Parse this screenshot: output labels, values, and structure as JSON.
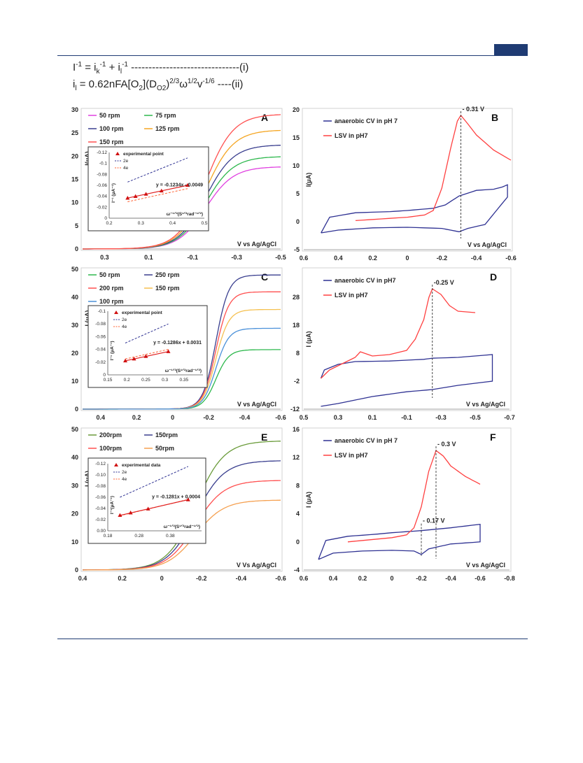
{
  "equations": {
    "eq1": {
      "t1": "I",
      "s1": "-1",
      "t2": " = i",
      "b1": "k",
      "s2": "-1",
      "t3": " + i",
      "b2": "l",
      "s3": "-1",
      "t4": " -------------------------------(i)"
    },
    "eq2": {
      "t1": "i",
      "b1": "l",
      "t2": " = 0.62nFA[O",
      "b2": "2",
      "t3": "](D",
      "b3": "O",
      "b4": "2",
      "t4": ")",
      "s1": "2/3",
      "t5": "ω",
      "s2": "1/2",
      "t6": "v",
      "s3": "-1/6",
      "t7": " ----(ii)"
    }
  },
  "colors": {
    "frame": "#1f3b73",
    "blue": "#2e3192",
    "red": "#ff4040"
  },
  "chart_data": [
    {
      "id": "A",
      "type": "line",
      "panel_letter": "A",
      "xlabel": "V vs Ag/AgCl",
      "ylabel": "I(μA)",
      "xlim": [
        0.4,
        -0.5
      ],
      "ylim": [
        0,
        30
      ],
      "xticks": [
        "0.3",
        "0.1",
        "-0.1",
        "-0.3",
        "-0.5"
      ],
      "xtick_values": [
        0.3,
        0.1,
        -0.1,
        -0.3,
        -0.5
      ],
      "yticks": [
        "0",
        "5",
        "10",
        "15",
        "20",
        "25",
        "30"
      ],
      "ytick_values": [
        0,
        5,
        10,
        15,
        20,
        25,
        30
      ],
      "legend_cols": 2,
      "series": [
        {
          "name": "50 rpm",
          "color": "#e040e0",
          "plateau": 17.7,
          "legend": true
        },
        {
          "name": "75 rpm",
          "color": "#2db84d",
          "plateau": 19.9,
          "legend": true
        },
        {
          "name": "100 rpm",
          "color": "#3a3f8f",
          "plateau": 22.4,
          "legend": true
        },
        {
          "name": "125 rpm",
          "color": "#f5a623",
          "plateau": 25.6,
          "legend": true
        },
        {
          "name": "150 rpm",
          "color": "#ff5050",
          "plateau": 29.0,
          "legend": true
        }
      ],
      "onset": -0.16,
      "k": 16,
      "inset": {
        "xlim": [
          0.2,
          0.5
        ],
        "ylim": [
          0,
          -0.12
        ],
        "xticks": [
          "0.2",
          "0.3",
          "0.4",
          "0.5"
        ],
        "xtick_values": [
          0.2,
          0.3,
          0.4,
          0.5
        ],
        "yticks": [
          "0",
          "-0.02",
          "-0.04",
          "-0.06",
          "-0.08",
          "-0.1",
          "-0.12"
        ],
        "ytick_values": [
          0,
          -0.02,
          -0.04,
          -0.06,
          -0.08,
          -0.1,
          -0.12
        ],
        "ylabel": "I⁻¹ (μA⁻¹)",
        "xlabel": "ω⁻¹ᐟ²(S¹ᐟ²rad⁻¹ᐟ²)",
        "legend": [
          "experimental point",
          "2e",
          "4e"
        ],
        "equation": "y = -0.1234x - 0.0049",
        "points": {
          "x": [
            0.258,
            0.283,
            0.316,
            0.365,
            0.447
          ],
          "y": [
            -0.0367,
            -0.0398,
            -0.0439,
            -0.0499,
            -0.0601
          ]
        },
        "fit": {
          "m": -0.1234,
          "b": -0.0049
        },
        "line2e": {
          "x": [
            0.258,
            0.447
          ],
          "y": [
            -0.066,
            -0.11
          ]
        },
        "line4e": {
          "x": [
            0.258,
            0.447
          ],
          "y": [
            -0.03,
            -0.054
          ]
        }
      }
    },
    {
      "id": "B",
      "type": "line",
      "panel_letter": "B",
      "xlabel": "V vs Ag/AgCl",
      "ylabel": "I(μA)",
      "xlim": [
        0.6,
        -0.6
      ],
      "ylim": [
        -5,
        20
      ],
      "xticks": [
        "0.6",
        "0.4",
        "0.2",
        "0",
        "-0.2",
        "-0.4",
        "-0.6"
      ],
      "xtick_values": [
        0.6,
        0.4,
        0.2,
        0,
        -0.2,
        -0.4,
        -0.6
      ],
      "yticks": [
        "-5",
        "0",
        "5",
        "10",
        "15",
        "20"
      ],
      "ytick_values": [
        -5,
        0,
        5,
        10,
        15,
        20
      ],
      "legend": [
        "anaerobic CV in pH 7",
        "LSV in pH7"
      ],
      "annotation": "- 0.31 V",
      "annotation_x": -0.31,
      "cv_forward": {
        "x": [
          0.5,
          0.45,
          0.3,
          0.1,
          0,
          -0.15,
          -0.22,
          -0.3,
          -0.4,
          -0.5,
          -0.55,
          -0.58,
          -0.58
        ],
        "y": [
          -2,
          0.8,
          1.6,
          1.8,
          2.0,
          2.4,
          3,
          4.6,
          5.6,
          5.8,
          6.2,
          6.6,
          4.4
        ]
      },
      "cv_reverse": {
        "x": [
          -0.58,
          -0.45,
          -0.35,
          -0.3,
          -0.2,
          0,
          0.2,
          0.4,
          0.5
        ],
        "y": [
          4.4,
          -0.5,
          -1.2,
          -1.8,
          -1.2,
          -1,
          -1.1,
          -1.5,
          -2
        ]
      },
      "lsv": {
        "x": [
          0.3,
          0.2,
          0,
          -0.1,
          -0.15,
          -0.2,
          -0.25,
          -0.29,
          -0.31,
          -0.35,
          -0.4,
          -0.5,
          -0.6
        ],
        "y": [
          0.2,
          0.4,
          0.8,
          1.2,
          2,
          6,
          13,
          18,
          19,
          17.5,
          15.5,
          12.8,
          11
        ]
      }
    },
    {
      "id": "C",
      "type": "line",
      "panel_letter": "C",
      "xlabel": "V vs Ag/AgCl",
      "ylabel": "I (μA)",
      "xlim": [
        0.5,
        -0.6
      ],
      "ylim": [
        0,
        50
      ],
      "xticks": [
        "0.4",
        "0.2",
        "0",
        "-0.2",
        "-0.4",
        "-0.6"
      ],
      "xtick_values": [
        0.4,
        0.2,
        0,
        -0.2,
        -0.4,
        -0.6
      ],
      "yticks": [
        "0",
        "10",
        "20",
        "30",
        "40",
        "50"
      ],
      "ytick_values": [
        0,
        10,
        20,
        30,
        40,
        50
      ],
      "legend_cols": 2,
      "series": [
        {
          "name": "50 rpm",
          "color": "#2db84d",
          "plateau": 21.2,
          "legend": true
        },
        {
          "name": "250 rpm",
          "color": "#3a3f8f",
          "plateau": 47.8,
          "legend": true
        },
        {
          "name": "200 rpm",
          "color": "#ff5050",
          "plateau": 41.8,
          "legend": true
        },
        {
          "name": "150 rpm",
          "color": "#f5c050",
          "plateau": 35.5,
          "legend": true
        },
        {
          "name": "100 rpm",
          "color": "#4a90d9",
          "plateau": 28.8,
          "legend": true
        }
      ],
      "onset": -0.24,
      "k": 28,
      "inset": {
        "xlim": [
          0.15,
          0.4
        ],
        "ylim": [
          0,
          -0.1
        ],
        "xticks": [
          "0.15",
          "0.2",
          "0.25",
          "0.3",
          "0.35"
        ],
        "xtick_values": [
          0.15,
          0.2,
          0.25,
          0.3,
          0.35
        ],
        "yticks": [
          "0",
          "-0.02",
          "-0.04",
          "-0.06",
          "-0.08",
          "-0.1"
        ],
        "ytick_values": [
          0,
          -0.02,
          -0.04,
          -0.06,
          -0.08,
          -0.1
        ],
        "ylabel": "I⁻¹ (μA⁻¹)",
        "xlabel": "ω⁻¹ᐟ²(S¹ᐟ²rad⁻¹ᐟ²)",
        "legend": [
          "experimental point",
          "2e",
          "4e"
        ],
        "equation": "y = -0.1286x + 0.0031",
        "points": {
          "x": [
            0.196,
            0.219,
            0.25,
            0.309
          ],
          "y": [
            -0.0221,
            -0.0251,
            -0.0291,
            -0.0366
          ]
        },
        "fit": {
          "m": -0.1286,
          "b": 0.0031
        },
        "line2e": {
          "x": [
            0.196,
            0.309
          ],
          "y": [
            -0.05,
            -0.08
          ]
        },
        "line4e": {
          "x": [
            0.196,
            0.309
          ],
          "y": [
            -0.025,
            -0.04
          ]
        }
      }
    },
    {
      "id": "D",
      "type": "line",
      "panel_letter": "D",
      "xlabel": "V vs Ag/AgCl",
      "ylabel": "I (μA)",
      "xlim": [
        0.5,
        -0.7
      ],
      "ylim": [
        -12,
        38
      ],
      "xticks": [
        "0.5",
        "0.3",
        "0.1",
        "-0.1",
        "-0.3",
        "-0.5",
        "-0.7"
      ],
      "xtick_values": [
        0.5,
        0.3,
        0.1,
        -0.1,
        -0.3,
        -0.5,
        -0.7
      ],
      "yticks": [
        "-12",
        "-2",
        "8",
        "18",
        "28"
      ],
      "ytick_values": [
        -12,
        -2,
        8,
        18,
        28
      ],
      "legend": [
        "anaerobic CV in pH7",
        "LSV in pH7"
      ],
      "annotation": "-0.25 V",
      "annotation_x": -0.25,
      "cv_forward": {
        "x": [
          0.4,
          0.38,
          0.3,
          0.2,
          0,
          -0.2,
          -0.25,
          -0.4,
          -0.6,
          -0.6
        ],
        "y": [
          -1,
          2,
          4,
          5,
          5.2,
          5.8,
          6.2,
          6.5,
          7.5,
          -2
        ]
      },
      "cv_reverse": {
        "x": [
          -0.6,
          -0.4,
          -0.25,
          -0.1,
          0.1,
          0.3,
          0.4
        ],
        "y": [
          -2,
          -3.5,
          -5,
          -5.8,
          -7.5,
          -10,
          -11
        ]
      },
      "lsv": {
        "x": [
          0.4,
          0.35,
          0.25,
          0.2,
          0.17,
          0.1,
          0,
          -0.1,
          -0.15,
          -0.2,
          -0.23,
          -0.25,
          -0.3,
          -0.35,
          -0.4,
          -0.5
        ],
        "y": [
          -1,
          2,
          5,
          6.5,
          8.5,
          7,
          7.5,
          9,
          13,
          20,
          28,
          31,
          29,
          25,
          23,
          22.5
        ]
      }
    },
    {
      "id": "E",
      "type": "line",
      "panel_letter": "E",
      "xlabel": "V Vs Ag/AgCl",
      "ylabel": "I (μA)",
      "xlim": [
        0.4,
        -0.6
      ],
      "ylim": [
        0,
        50
      ],
      "xticks": [
        "0.4",
        "0.2",
        "0",
        "-0.2",
        "-0.4",
        "-0.6"
      ],
      "xtick_values": [
        0.4,
        0.2,
        0,
        -0.2,
        -0.4,
        -0.6
      ],
      "yticks": [
        "0",
        "10",
        "20",
        "30",
        "40",
        "50"
      ],
      "ytick_values": [
        0,
        10,
        20,
        30,
        40,
        50
      ],
      "legend_cols": 2,
      "series": [
        {
          "name": "200rpm",
          "color": "#6a9b3a",
          "plateau": 45.8,
          "legend": true
        },
        {
          "name": "150rpm",
          "color": "#3a3f8f",
          "plateau": 38.8,
          "legend": true
        },
        {
          "name": "100rpm",
          "color": "#ff5050",
          "plateau": 31.8,
          "legend": true
        },
        {
          "name": "50rpm",
          "color": "#f5a050",
          "plateau": 24.8,
          "legend": true
        }
      ],
      "onset": -0.17,
      "k": 14,
      "inset": {
        "xlim": [
          0.18,
          0.48
        ],
        "ylim": [
          0,
          -0.12
        ],
        "xticks": [
          "0.18",
          "0.28",
          "0.38"
        ],
        "xtick_values": [
          0.18,
          0.28,
          0.38
        ],
        "yticks": [
          "0.00",
          "-0.02",
          "-0.04",
          "-0.06",
          "-0.08",
          "-0.10",
          "-0.12"
        ],
        "ytick_values": [
          0,
          -0.02,
          -0.04,
          -0.06,
          -0.08,
          -0.1,
          -0.12
        ],
        "ylabel": "I⁻¹(μA⁻¹)",
        "xlabel": "ω⁻¹ᐟ²(S¹ᐟ²rad⁻¹ᐟ²)",
        "legend": [
          "experimental data",
          "2e",
          "4e"
        ],
        "equation": "y = -0.1281x + 0.0004",
        "points": {
          "x": [
            0.219,
            0.253,
            0.309,
            0.437
          ],
          "y": [
            -0.0277,
            -0.0322,
            -0.0392,
            -0.0556
          ]
        },
        "fit": {
          "m": -0.1281,
          "b": 0.0004
        },
        "line2e": {
          "x": [
            0.219,
            0.437
          ],
          "y": [
            -0.06,
            -0.115
          ]
        },
        "line4e": {
          "x": [
            0.219,
            0.437
          ],
          "y": [
            -0.027,
            -0.056
          ]
        }
      }
    },
    {
      "id": "F",
      "type": "line",
      "panel_letter": "F",
      "xlabel": "V vs Ag/AgCl",
      "ylabel": "I (μA)",
      "xlim": [
        0.6,
        -0.8
      ],
      "ylim": [
        -4,
        16
      ],
      "xticks": [
        "0.6",
        "0.4",
        "0.2",
        "0",
        "-0.2",
        "-0.4",
        "-0.6",
        "-0.8"
      ],
      "xtick_values": [
        0.6,
        0.4,
        0.2,
        0,
        -0.2,
        -0.4,
        -0.6,
        -0.8
      ],
      "yticks": [
        "-4",
        "0",
        "4",
        "8",
        "12",
        "16"
      ],
      "ytick_values": [
        -4,
        0,
        4,
        8,
        12,
        16
      ],
      "legend": [
        "anaerobic CV in pH 7",
        "LSV in pH7"
      ],
      "annotation": "- 0.3 V",
      "annotation_x": -0.3,
      "annotation2": "- 0.17 V",
      "annotation2_x": -0.2,
      "cv_forward": {
        "x": [
          0.5,
          0.45,
          0.3,
          0.1,
          0,
          -0.2,
          -0.4,
          -0.6,
          -0.6
        ],
        "y": [
          -2.5,
          0.2,
          0.8,
          1.1,
          1.3,
          1.6,
          2,
          2.5,
          0
        ]
      },
      "cv_reverse": {
        "x": [
          -0.6,
          -0.4,
          -0.25,
          -0.2,
          -0.15,
          0,
          0.2,
          0.4,
          0.5
        ],
        "y": [
          0,
          -0.3,
          -1,
          -1.8,
          -1.3,
          -1.2,
          -1.3,
          -1.6,
          -2.5
        ]
      },
      "lsv": {
        "x": [
          0.3,
          0.2,
          0,
          -0.1,
          -0.15,
          -0.2,
          -0.25,
          -0.3,
          -0.35,
          -0.4,
          -0.5,
          -0.6
        ],
        "y": [
          0,
          0.2,
          0.6,
          1,
          2,
          5,
          10,
          13,
          12.2,
          10.8,
          9.3,
          8.2
        ]
      }
    }
  ]
}
